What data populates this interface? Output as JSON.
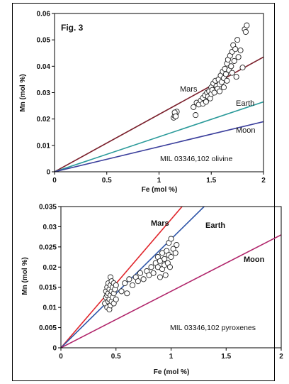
{
  "figure_label": "Fig. 3",
  "chart_data": [
    {
      "type": "scatter",
      "subtitle": "MIL 03346,102 olivine",
      "xlabel": "Fe (mol %)",
      "ylabel": "Mn (mol %)",
      "xlim": [
        0,
        2
      ],
      "ylim": [
        0,
        0.06
      ],
      "xticks": [
        "0",
        "0.5",
        "1",
        "1.5",
        "2"
      ],
      "yticks": [
        "0",
        "0.01",
        "0.02",
        "0.03",
        "0.04",
        "0.05",
        "0.06"
      ],
      "grid": false,
      "reference_lines": [
        {
          "name": "Mars",
          "x": [
            0,
            2
          ],
          "y": [
            0,
            0.0435
          ],
          "color": "#7a1f2b"
        },
        {
          "name": "Earth",
          "x": [
            0,
            2
          ],
          "y": [
            0,
            0.0265
          ],
          "color": "#2a9a9a"
        },
        {
          "name": "Moon",
          "x": [
            0,
            2
          ],
          "y": [
            0,
            0.019
          ],
          "color": "#3b3f9c"
        }
      ],
      "points": [
        [
          1.14,
          0.0205
        ],
        [
          1.15,
          0.0212
        ],
        [
          1.16,
          0.022
        ],
        [
          1.17,
          0.0228
        ],
        [
          1.15,
          0.0225
        ],
        [
          1.16,
          0.021
        ],
        [
          1.33,
          0.0245
        ],
        [
          1.35,
          0.0215
        ],
        [
          1.36,
          0.0262
        ],
        [
          1.38,
          0.0255
        ],
        [
          1.4,
          0.027
        ],
        [
          1.42,
          0.0258
        ],
        [
          1.42,
          0.028
        ],
        [
          1.44,
          0.029
        ],
        [
          1.45,
          0.0265
        ],
        [
          1.46,
          0.03
        ],
        [
          1.47,
          0.0285
        ],
        [
          1.48,
          0.0305
        ],
        [
          1.49,
          0.0278
        ],
        [
          1.5,
          0.0295
        ],
        [
          1.5,
          0.032
        ],
        [
          1.51,
          0.031
        ],
        [
          1.52,
          0.0335
        ],
        [
          1.53,
          0.03
        ],
        [
          1.54,
          0.0345
        ],
        [
          1.55,
          0.0325
        ],
        [
          1.56,
          0.0315
        ],
        [
          1.57,
          0.035
        ],
        [
          1.58,
          0.0332
        ],
        [
          1.58,
          0.0305
        ],
        [
          1.59,
          0.0365
        ],
        [
          1.6,
          0.034
        ],
        [
          1.61,
          0.038
        ],
        [
          1.62,
          0.032
        ],
        [
          1.62,
          0.0355
        ],
        [
          1.63,
          0.039
        ],
        [
          1.64,
          0.037
        ],
        [
          1.65,
          0.041
        ],
        [
          1.65,
          0.0345
        ],
        [
          1.66,
          0.0425
        ],
        [
          1.67,
          0.0385
        ],
        [
          1.68,
          0.044
        ],
        [
          1.69,
          0.04
        ],
        [
          1.7,
          0.0455
        ],
        [
          1.7,
          0.0375
        ],
        [
          1.71,
          0.048
        ],
        [
          1.72,
          0.042
        ],
        [
          1.73,
          0.0465
        ],
        [
          1.74,
          0.036
        ],
        [
          1.75,
          0.05
        ],
        [
          1.76,
          0.0435
        ],
        [
          1.78,
          0.046
        ],
        [
          1.8,
          0.0395
        ],
        [
          1.82,
          0.054
        ],
        [
          1.83,
          0.053
        ],
        [
          1.84,
          0.0555
        ]
      ]
    },
    {
      "type": "scatter",
      "subtitle": "MIL 03346,102 pyroxenes",
      "xlabel": "Fe (mol %)",
      "ylabel": "Mn (mol %)",
      "xlim": [
        0,
        2
      ],
      "ylim": [
        0,
        0.035
      ],
      "xticks": [
        "0",
        "0.5",
        "1",
        "1.5",
        "2"
      ],
      "yticks": [
        "0",
        "0.005",
        "0.01",
        "0.015",
        "0.02",
        "0.025",
        "0.03",
        "0.035"
      ],
      "grid": false,
      "reference_lines": [
        {
          "name": "Mars",
          "x": [
            0,
            1.1
          ],
          "y": [
            0,
            0.035
          ],
          "color": "#e0262c"
        },
        {
          "name": "Earth",
          "x": [
            0,
            1.3
          ],
          "y": [
            0,
            0.035
          ],
          "color": "#2e55a8"
        },
        {
          "name": "Moon",
          "x": [
            0,
            2
          ],
          "y": [
            0,
            0.028
          ],
          "color": "#b0246a"
        }
      ],
      "points": [
        [
          0.4,
          0.011
        ],
        [
          0.41,
          0.0125
        ],
        [
          0.41,
          0.014
        ],
        [
          0.42,
          0.01
        ],
        [
          0.42,
          0.013
        ],
        [
          0.42,
          0.015
        ],
        [
          0.43,
          0.0115
        ],
        [
          0.43,
          0.0135
        ],
        [
          0.43,
          0.016
        ],
        [
          0.44,
          0.0095
        ],
        [
          0.44,
          0.012
        ],
        [
          0.44,
          0.0145
        ],
        [
          0.45,
          0.0105
        ],
        [
          0.45,
          0.013
        ],
        [
          0.45,
          0.0155
        ],
        [
          0.45,
          0.0175
        ],
        [
          0.46,
          0.0115
        ],
        [
          0.46,
          0.014
        ],
        [
          0.46,
          0.0165
        ],
        [
          0.47,
          0.0125
        ],
        [
          0.47,
          0.015
        ],
        [
          0.48,
          0.011
        ],
        [
          0.48,
          0.0135
        ],
        [
          0.48,
          0.016
        ],
        [
          0.49,
          0.0145
        ],
        [
          0.5,
          0.012
        ],
        [
          0.5,
          0.0155
        ],
        [
          0.55,
          0.014
        ],
        [
          0.58,
          0.016
        ],
        [
          0.6,
          0.0135
        ],
        [
          0.62,
          0.017
        ],
        [
          0.65,
          0.0155
        ],
        [
          0.68,
          0.0175
        ],
        [
          0.7,
          0.0165
        ],
        [
          0.72,
          0.0185
        ],
        [
          0.75,
          0.017
        ],
        [
          0.78,
          0.019
        ],
        [
          0.8,
          0.018
        ],
        [
          0.82,
          0.02
        ],
        [
          0.84,
          0.0185
        ],
        [
          0.86,
          0.021
        ],
        [
          0.88,
          0.02
        ],
        [
          0.88,
          0.0225
        ],
        [
          0.9,
          0.0175
        ],
        [
          0.9,
          0.0215
        ],
        [
          0.92,
          0.0195
        ],
        [
          0.92,
          0.0235
        ],
        [
          0.94,
          0.0205
        ],
        [
          0.94,
          0.022
        ],
        [
          0.95,
          0.018
        ],
        [
          0.96,
          0.024
        ],
        [
          0.97,
          0.021
        ],
        [
          0.98,
          0.023
        ],
        [
          0.98,
          0.026
        ],
        [
          0.99,
          0.02
        ],
        [
          1.0,
          0.0225
        ],
        [
          1.0,
          0.027
        ],
        [
          1.02,
          0.0245
        ],
        [
          1.04,
          0.0235
        ],
        [
          1.05,
          0.0255
        ]
      ]
    }
  ]
}
